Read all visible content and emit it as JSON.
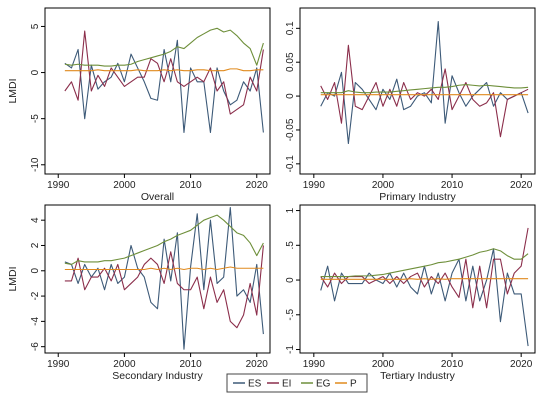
{
  "figure": {
    "legend_entries": [
      {
        "name": "ES",
        "color": "#3d5a78"
      },
      {
        "name": "EI",
        "color": "#8b2e4b"
      },
      {
        "name": "EG",
        "color": "#6e8f3a"
      },
      {
        "name": "P",
        "color": "#e08a1e"
      }
    ]
  },
  "chart_data": [
    {
      "type": "line",
      "title": "Overall",
      "ylabel": "LMDI",
      "xlim": [
        1988,
        2022
      ],
      "ylim": [
        -11,
        7
      ],
      "xticks": [
        "1990",
        "2000",
        "2010",
        "2020"
      ],
      "xtick_values": [
        1990,
        2000,
        2010,
        2020
      ],
      "yticks": [
        "-10",
        "-5",
        "0",
        "5"
      ],
      "ytick_values": [
        -10,
        -5,
        0,
        5
      ],
      "x": [
        1991,
        1992,
        1993,
        1994,
        1995,
        1996,
        1997,
        1998,
        1999,
        2000,
        2001,
        2002,
        2003,
        2004,
        2005,
        2006,
        2007,
        2008,
        2009,
        2010,
        2011,
        2012,
        2013,
        2014,
        2015,
        2016,
        2017,
        2018,
        2019,
        2020,
        2021
      ],
      "series": [
        {
          "name": "ES",
          "color": "#3d5a78",
          "values": [
            1.0,
            0.5,
            2.5,
            -5.0,
            0.8,
            -1.8,
            -1.0,
            -0.5,
            1.0,
            -1.0,
            2.0,
            0.5,
            -1.0,
            -2.8,
            -3.0,
            2.5,
            -1.0,
            3.5,
            -6.5,
            0.5,
            -1.0,
            -1.0,
            -6.5,
            0.5,
            -2.0,
            -3.5,
            -3.0,
            -1.0,
            -2.0,
            0.5,
            -6.5
          ]
        },
        {
          "name": "EI",
          "color": "#8b2e4b",
          "values": [
            -2.0,
            -1.0,
            -3.0,
            4.5,
            -2.0,
            -0.3,
            -1.5,
            0.5,
            -0.5,
            -1.5,
            -1.0,
            -0.5,
            -0.5,
            1.5,
            1.0,
            -1.0,
            1.5,
            -1.0,
            -1.5,
            -1.0,
            -0.5,
            -1.0,
            0.5,
            -2.0,
            -1.0,
            -4.5,
            -4.0,
            -3.5,
            -0.5,
            -2.0,
            2.5
          ]
        },
        {
          "name": "EG",
          "color": "#6e8f3a",
          "values": [
            0.9,
            0.8,
            0.9,
            0.8,
            0.8,
            0.8,
            0.7,
            0.7,
            0.8,
            0.8,
            0.9,
            1.2,
            1.4,
            1.6,
            1.8,
            2.0,
            2.3,
            2.8,
            2.6,
            3.2,
            3.8,
            4.2,
            4.6,
            4.8,
            4.4,
            4.6,
            4.0,
            3.2,
            2.6,
            0.8,
            3.2
          ]
        },
        {
          "name": "P",
          "color": "#e08a1e",
          "values": [
            0.2,
            0.2,
            0.2,
            0.2,
            0.2,
            0.3,
            0.2,
            0.2,
            0.2,
            0.2,
            0.2,
            0.3,
            0.2,
            0.2,
            0.2,
            0.3,
            0.2,
            0.3,
            0.2,
            0.2,
            0.3,
            0.3,
            0.2,
            0.2,
            0.2,
            0.4,
            0.4,
            0.2,
            0.2,
            0.3,
            0.3
          ]
        }
      ]
    },
    {
      "type": "line",
      "title": "Primary Industry",
      "ylabel": "",
      "xlim": [
        1988,
        2022
      ],
      "ylim": [
        -0.115,
        0.13
      ],
      "xticks": [
        "1990",
        "2000",
        "2010",
        "2020"
      ],
      "xtick_values": [
        1990,
        2000,
        2010,
        2020
      ],
      "yticks": [
        "-0.1",
        "-0.05",
        "0",
        "0.05",
        "0.1"
      ],
      "ytick_values": [
        -0.1,
        -0.05,
        0,
        0.05,
        0.1
      ],
      "x": [
        1991,
        1992,
        1993,
        1994,
        1995,
        1996,
        1997,
        1998,
        1999,
        2000,
        2001,
        2002,
        2003,
        2004,
        2005,
        2006,
        2007,
        2008,
        2009,
        2010,
        2011,
        2012,
        2013,
        2014,
        2015,
        2016,
        2017,
        2018,
        2019,
        2020,
        2021
      ],
      "series": [
        {
          "name": "ES",
          "color": "#3d5a78",
          "values": [
            -0.015,
            0.005,
            0.0,
            0.035,
            -0.07,
            0.02,
            0.01,
            -0.005,
            -0.02,
            0.01,
            -0.005,
            0.025,
            -0.02,
            -0.015,
            0.0,
            0.005,
            -0.01,
            0.11,
            -0.04,
            0.03,
            0.005,
            -0.015,
            0.0,
            0.01,
            0.02,
            -0.015,
            0.005,
            -0.005,
            0.0,
            0.005,
            -0.025
          ]
        },
        {
          "name": "EI",
          "color": "#8b2e4b",
          "values": [
            0.015,
            -0.005,
            0.02,
            -0.04,
            0.075,
            -0.015,
            -0.02,
            0.0,
            0.02,
            -0.015,
            0.01,
            -0.015,
            0.02,
            -0.005,
            0.005,
            0.0,
            0.01,
            -0.005,
            0.04,
            -0.02,
            0.0,
            0.02,
            -0.005,
            -0.015,
            -0.01,
            0.005,
            -0.06,
            -0.005,
            0.0,
            0.005,
            0.01
          ]
        },
        {
          "name": "EG",
          "color": "#6e8f3a",
          "values": [
            0.005,
            0.005,
            0.005,
            0.005,
            0.008,
            0.006,
            0.005,
            0.005,
            0.006,
            0.006,
            0.006,
            0.007,
            0.008,
            0.009,
            0.01,
            0.011,
            0.012,
            0.013,
            0.013,
            0.014,
            0.016,
            0.017,
            0.016,
            0.015,
            0.016,
            0.015,
            0.014,
            0.013,
            0.012,
            0.012,
            0.013
          ]
        },
        {
          "name": "P",
          "color": "#e08a1e",
          "values": [
            0.002,
            0.002,
            0.002,
            0.002,
            0.002,
            0.002,
            0.002,
            0.002,
            0.002,
            0.002,
            0.002,
            0.002,
            0.002,
            0.002,
            0.002,
            0.002,
            0.002,
            0.002,
            0.002,
            0.002,
            0.002,
            0.002,
            0.002,
            0.002,
            0.002,
            0.002,
            0.002,
            0.002,
            0.002,
            0.002,
            0.002
          ]
        }
      ]
    },
    {
      "type": "line",
      "title": "Secondary Industry",
      "ylabel": "LMDI",
      "xlim": [
        1988,
        2022
      ],
      "ylim": [
        -6.5,
        5.2
      ],
      "xticks": [
        "1990",
        "2000",
        "2010",
        "2020"
      ],
      "xtick_values": [
        1990,
        2000,
        2010,
        2020
      ],
      "yticks": [
        "-6",
        "-4",
        "-2",
        "0",
        "2",
        "4"
      ],
      "ytick_values": [
        -6,
        -4,
        -2,
        0,
        2,
        4
      ],
      "x": [
        1991,
        1992,
        1993,
        1994,
        1995,
        1996,
        1997,
        1998,
        1999,
        2000,
        2001,
        2002,
        2003,
        2004,
        2005,
        2006,
        2007,
        2008,
        2009,
        2010,
        2011,
        2012,
        2013,
        2014,
        2015,
        2016,
        2017,
        2018,
        2019,
        2020,
        2021
      ],
      "series": [
        {
          "name": "ES",
          "color": "#3d5a78",
          "values": [
            0.7,
            0.5,
            -1.0,
            0.5,
            -0.5,
            0.2,
            -1.5,
            0.5,
            -1.0,
            -0.5,
            2.0,
            0.2,
            -0.5,
            -2.5,
            -3.0,
            2.5,
            -0.8,
            3.0,
            -6.2,
            0.3,
            4.5,
            -1.5,
            4.0,
            -1.0,
            -0.5,
            5.0,
            -2.0,
            -1.5,
            -2.5,
            0.5,
            -5.0
          ]
        },
        {
          "name": "EI",
          "color": "#8b2e4b",
          "values": [
            -0.8,
            -0.8,
            1.0,
            -1.5,
            -0.5,
            -0.5,
            0.2,
            -0.8,
            0.5,
            -1.5,
            -1.0,
            -0.5,
            0.5,
            1.0,
            0.5,
            -1.0,
            1.5,
            -1.0,
            -1.5,
            -1.5,
            -0.5,
            -3.0,
            -0.5,
            -2.5,
            -1.5,
            -4.0,
            -4.5,
            -3.5,
            -1.0,
            -3.5,
            2.0
          ]
        },
        {
          "name": "EG",
          "color": "#6e8f3a",
          "values": [
            0.6,
            0.5,
            0.8,
            0.7,
            0.7,
            0.7,
            0.8,
            0.8,
            0.9,
            1.0,
            1.2,
            1.4,
            1.6,
            1.8,
            2.0,
            2.3,
            2.5,
            2.8,
            3.0,
            3.2,
            3.6,
            4.0,
            4.2,
            4.4,
            4.0,
            3.5,
            3.0,
            2.8,
            2.2,
            1.2,
            2.2
          ]
        },
        {
          "name": "P",
          "color": "#e08a1e",
          "values": [
            0.1,
            0.1,
            0.1,
            0.1,
            0.1,
            0.1,
            0.1,
            0.1,
            0.1,
            0.1,
            0.1,
            0.1,
            0.1,
            0.2,
            0.1,
            0.2,
            0.1,
            0.2,
            0.1,
            0.2,
            0.2,
            0.1,
            0.2,
            0.1,
            0.2,
            0.3,
            0.2,
            0.2,
            0.2,
            0.2,
            0.2
          ]
        }
      ]
    },
    {
      "type": "line",
      "title": "Tertiary Industry",
      "ylabel": "",
      "xlim": [
        1988,
        2022
      ],
      "ylim": [
        -1.05,
        1.08
      ],
      "xticks": [
        "1990",
        "2000",
        "2010",
        "2020"
      ],
      "xtick_values": [
        1990,
        2000,
        2010,
        2020
      ],
      "yticks": [
        "-1",
        "-.5",
        "0",
        ".5",
        "1"
      ],
      "ytick_values": [
        -1,
        -0.5,
        0,
        0.5,
        1
      ],
      "x": [
        1991,
        1992,
        1993,
        1994,
        1995,
        1996,
        1997,
        1998,
        1999,
        2000,
        2001,
        2002,
        2003,
        2004,
        2005,
        2006,
        2007,
        2008,
        2009,
        2010,
        2011,
        2012,
        2013,
        2014,
        2015,
        2016,
        2017,
        2018,
        2019,
        2020,
        2021
      ],
      "series": [
        {
          "name": "ES",
          "color": "#3d5a78",
          "values": [
            -0.15,
            0.2,
            -0.3,
            0.1,
            -0.05,
            -0.05,
            -0.05,
            0.1,
            0.0,
            -0.05,
            0.1,
            -0.1,
            0.1,
            -0.1,
            -0.2,
            0.2,
            -0.2,
            0.1,
            -0.3,
            0.1,
            0.3,
            -0.3,
            0.2,
            -0.3,
            0.0,
            0.45,
            -0.6,
            0.1,
            -0.2,
            -0.2,
            -0.95
          ]
        },
        {
          "name": "EI",
          "color": "#8b2e4b",
          "values": [
            0.05,
            -0.1,
            0.1,
            -0.05,
            0.05,
            0.05,
            0.05,
            -0.05,
            0.0,
            0.05,
            -0.05,
            0.05,
            -0.05,
            0.05,
            0.1,
            -0.1,
            0.05,
            -0.05,
            0.1,
            -0.1,
            -0.25,
            0.3,
            -0.4,
            0.2,
            -0.4,
            0.3,
            0.3,
            -0.2,
            0.1,
            0.2,
            0.75
          ]
        },
        {
          "name": "EG",
          "color": "#6e8f3a",
          "values": [
            0.05,
            0.05,
            0.05,
            0.05,
            0.05,
            0.06,
            0.06,
            0.06,
            0.07,
            0.08,
            0.1,
            0.12,
            0.14,
            0.16,
            0.18,
            0.2,
            0.22,
            0.25,
            0.26,
            0.28,
            0.3,
            0.33,
            0.36,
            0.4,
            0.42,
            0.45,
            0.42,
            0.35,
            0.3,
            0.3,
            0.38
          ]
        },
        {
          "name": "P",
          "color": "#e08a1e",
          "values": [
            0.01,
            0.01,
            0.01,
            0.01,
            0.01,
            0.01,
            0.01,
            0.01,
            0.01,
            0.01,
            0.01,
            0.01,
            0.01,
            0.02,
            0.01,
            0.02,
            0.01,
            0.02,
            0.01,
            0.02,
            0.02,
            0.02,
            0.02,
            0.02,
            0.02,
            0.02,
            0.02,
            0.02,
            0.02,
            0.02,
            0.02
          ]
        }
      ]
    }
  ]
}
